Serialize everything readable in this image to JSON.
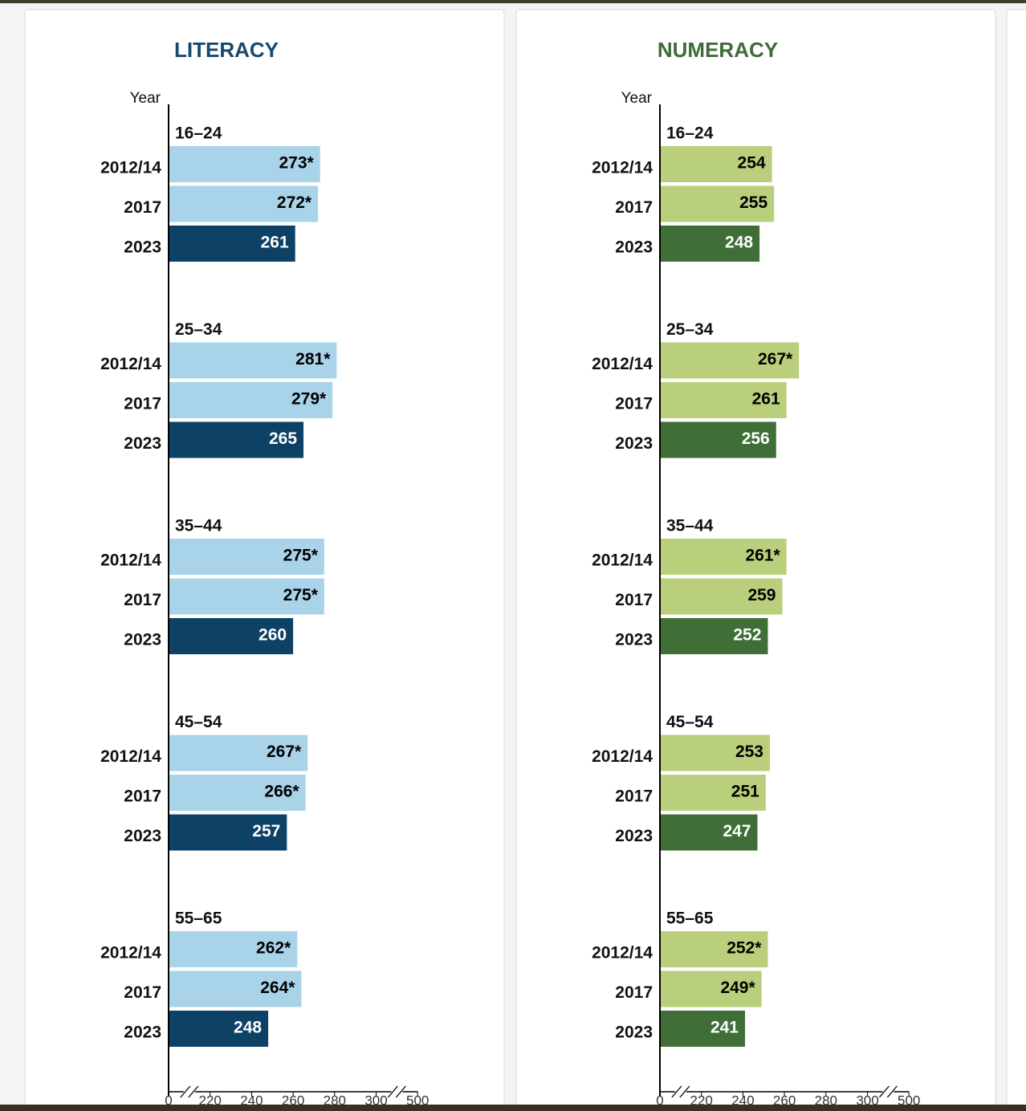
{
  "chart_data": [
    {
      "type": "bar",
      "title": "LITERACY",
      "title_color": "#17486d",
      "y_label": "Year",
      "groups": [
        "16–24",
        "25–34",
        "35–44",
        "45–54",
        "55–65"
      ],
      "series": [
        {
          "name": "2012/14",
          "color": "#a9d3e9",
          "label_color": "#000000",
          "values": [
            273,
            281,
            275,
            267,
            262
          ],
          "value_labels": [
            "273*",
            "281*",
            "275*",
            "267*",
            "262*"
          ]
        },
        {
          "name": "2017",
          "color": "#a9d3e9",
          "label_color": "#000000",
          "values": [
            272,
            279,
            275,
            266,
            264
          ],
          "value_labels": [
            "272*",
            "279*",
            "275*",
            "266*",
            "264*"
          ]
        },
        {
          "name": "2023",
          "color": "#0e4166",
          "label_color": "#ffffff",
          "values": [
            261,
            265,
            260,
            257,
            248
          ],
          "value_labels": [
            "261",
            "265",
            "260",
            "257",
            "248"
          ]
        }
      ],
      "xlim": [
        0,
        500
      ],
      "xticks": [
        0,
        220,
        240,
        260,
        280,
        300,
        500
      ]
    },
    {
      "type": "bar",
      "title": "NUMERACY",
      "title_color": "#3e6b38",
      "y_label": "Year",
      "groups": [
        "16–24",
        "25–34",
        "35–44",
        "45–54",
        "55–65"
      ],
      "series": [
        {
          "name": "2012/14",
          "color": "#b9cf7b",
          "label_color": "#000000",
          "values": [
            254,
            267,
            261,
            253,
            252
          ],
          "value_labels": [
            "254",
            "267*",
            "261*",
            "253",
            "252*"
          ]
        },
        {
          "name": "2017",
          "color": "#b9cf7b",
          "label_color": "#000000",
          "values": [
            255,
            261,
            259,
            251,
            249
          ],
          "value_labels": [
            "255",
            "261",
            "259",
            "251",
            "249*"
          ]
        },
        {
          "name": "2023",
          "color": "#3f6e37",
          "label_color": "#ffffff",
          "values": [
            248,
            256,
            252,
            247,
            241
          ],
          "value_labels": [
            "248",
            "256",
            "252",
            "247",
            "241"
          ]
        }
      ],
      "xlim": [
        0,
        500
      ],
      "xticks": [
        0,
        220,
        240,
        260,
        280,
        300,
        500
      ]
    }
  ]
}
